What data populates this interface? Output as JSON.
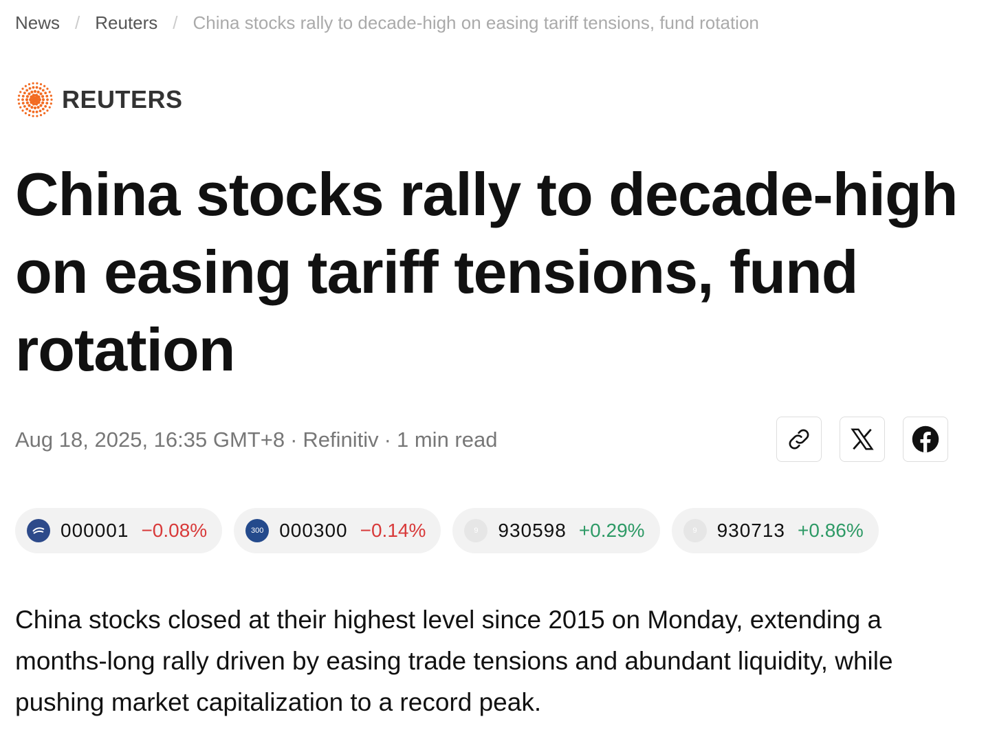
{
  "breadcrumb": {
    "items": [
      "News",
      "Reuters",
      "China stocks rally to decade-high on easing tariff tensions, fund rotation"
    ],
    "separator": "/"
  },
  "publisher": {
    "name": "REUTERS"
  },
  "article": {
    "title": "China stocks rally to decade-high on easing tariff tensions, fund rotation",
    "meta": {
      "date": "Aug 18, 2025, 16:35 GMT+8",
      "source": "Refinitiv",
      "read_time": "1 min read",
      "separator": "·"
    },
    "tickers": [
      {
        "icon": "",
        "code": "000001",
        "change": "−0.08%",
        "direction": "down"
      },
      {
        "icon": "300",
        "code": "000300",
        "change": "−0.14%",
        "direction": "down"
      },
      {
        "icon": "9",
        "code": "930598",
        "change": "+0.29%",
        "direction": "up"
      },
      {
        "icon": "9",
        "code": "930713",
        "change": "+0.86%",
        "direction": "up"
      }
    ],
    "body": "China stocks closed at their highest level since 2015 on Monday, extending a months-long rally driven by easing trade tensions and abundant liquidity, while pushing market capitalization to a record peak."
  }
}
